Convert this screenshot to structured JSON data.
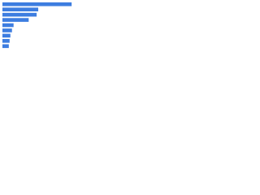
{
  "chart_data": {
    "type": "barh",
    "categories": [
      null,
      null,
      null,
      null,
      null,
      null,
      null,
      null,
      null
    ],
    "values": [
      87,
      45,
      43,
      33,
      14,
      12,
      10,
      9,
      8
    ],
    "color": "#3d7de0",
    "xlim": [
      0,
      95
    ]
  }
}
